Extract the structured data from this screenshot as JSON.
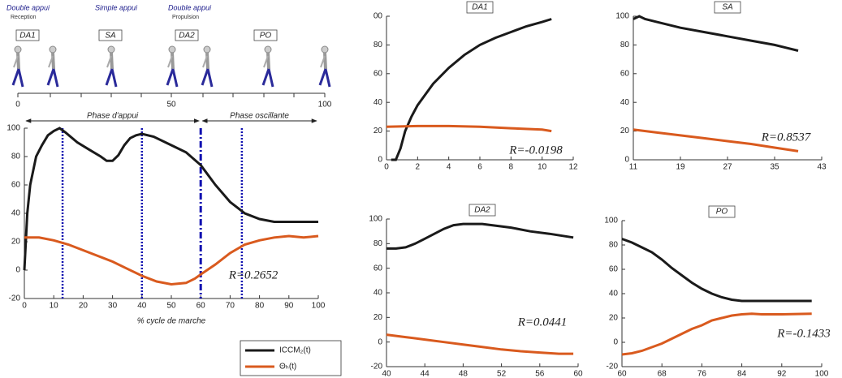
{
  "chart_data": [
    {
      "type": "timeline",
      "headers": [
        {
          "title": "Double appui",
          "subtitle": "Reception"
        },
        {
          "title": "Simple appui"
        },
        {
          "title": "Double appui",
          "subtitle": "Propulsion"
        }
      ],
      "phases": [
        "DA1",
        "SA",
        "DA2",
        "PO"
      ],
      "xlim": [
        0,
        100
      ],
      "xticks": [
        0,
        50,
        100
      ]
    },
    {
      "type": "line",
      "xlabel": "% cycle de marche",
      "annotation": "R=0.2652",
      "xlim": [
        0,
        100
      ],
      "xticks": [
        0,
        10,
        20,
        30,
        40,
        50,
        60,
        70,
        80,
        90,
        100
      ],
      "ylim": [
        -20,
        100
      ],
      "yticks": [
        -20,
        0,
        20,
        40,
        60,
        80,
        100
      ],
      "spans": [
        {
          "label": "Phase d'appui",
          "from": 0,
          "to": 60
        },
        {
          "label": "Phase oscillante",
          "from": 60,
          "to": 100
        }
      ],
      "vlines": [
        13,
        40,
        60,
        74
      ],
      "vline_styles": [
        "dot",
        "dot",
        "dashdot",
        "dot"
      ],
      "vline_color": "#1010b0",
      "series": [
        {
          "name": "ICCM₂(t)",
          "color": "#1a1a1a",
          "x": [
            0,
            1,
            2,
            4,
            6,
            8,
            10,
            12,
            14,
            18,
            22,
            26,
            28,
            30,
            32,
            34,
            36,
            38,
            40,
            44,
            50,
            55,
            60,
            65,
            70,
            75,
            80,
            85,
            90,
            95,
            100
          ],
          "values": [
            0,
            40,
            60,
            80,
            88,
            95,
            98,
            100,
            97,
            90,
            85,
            80,
            77,
            77,
            81,
            88,
            93,
            95,
            96,
            94,
            88,
            83,
            74,
            60,
            48,
            40,
            36,
            34,
            34,
            34,
            34
          ]
        },
        {
          "name": "Θₕ(t)",
          "color": "#d95a1e",
          "x": [
            0,
            5,
            10,
            15,
            20,
            25,
            30,
            35,
            40,
            45,
            50,
            55,
            58,
            60,
            65,
            70,
            75,
            80,
            85,
            90,
            95,
            100
          ],
          "values": [
            23,
            23,
            21,
            18,
            14,
            10,
            6,
            1,
            -4,
            -8,
            -10,
            -9,
            -6,
            -3,
            4,
            12,
            18,
            21,
            23,
            24,
            23,
            24
          ]
        }
      ]
    },
    {
      "type": "line",
      "title": "DA1",
      "annotation": "R=-0.0198",
      "xlim": [
        0,
        12
      ],
      "xticks": [
        0,
        2,
        4,
        6,
        8,
        10,
        12
      ],
      "ylim": [
        0,
        100
      ],
      "yticks": [
        0,
        20,
        40,
        60,
        80,
        {
          "value": 100,
          "label": "00"
        }
      ],
      "series": [
        {
          "color": "#1a1a1a",
          "x": [
            0.3,
            0.6,
            0.9,
            1.2,
            1.6,
            2,
            3,
            4,
            5,
            6,
            7,
            8,
            9,
            10,
            10.6
          ],
          "values": [
            0,
            0,
            8,
            20,
            30,
            38,
            53,
            64,
            73,
            80,
            85,
            89,
            93,
            96,
            98
          ]
        },
        {
          "color": "#d95a1e",
          "x": [
            0,
            2,
            4,
            6,
            8,
            10,
            10.6
          ],
          "values": [
            23,
            23.5,
            23.5,
            23,
            22,
            21,
            20
          ]
        }
      ]
    },
    {
      "type": "line",
      "title": "SA",
      "annotation": "R=0.8537",
      "xlim": [
        11,
        43
      ],
      "xticks": [
        11,
        19,
        27,
        35,
        43
      ],
      "ylim": [
        0,
        100
      ],
      "yticks": [
        0,
        20,
        40,
        60,
        80,
        100
      ],
      "series": [
        {
          "color": "#1a1a1a",
          "x": [
            11,
            12,
            13,
            15,
            19,
            23,
            27,
            31,
            35,
            37,
            39
          ],
          "values": [
            98,
            100,
            98,
            96,
            92,
            89,
            86,
            83,
            80,
            78,
            76
          ]
        },
        {
          "color": "#d95a1e",
          "x": [
            11,
            15,
            19,
            23,
            27,
            31,
            35,
            39
          ],
          "values": [
            21,
            19,
            17,
            15,
            13,
            11,
            8.5,
            6
          ]
        }
      ]
    },
    {
      "type": "line",
      "title": "DA2",
      "annotation": "R=0.0441",
      "xlim": [
        40,
        60
      ],
      "xticks": [
        40,
        44,
        48,
        52,
        56,
        60
      ],
      "ylim": [
        -20,
        100
      ],
      "yticks": [
        -20,
        0,
        20,
        40,
        60,
        80,
        100
      ],
      "series": [
        {
          "color": "#1a1a1a",
          "x": [
            40,
            41,
            42,
            43,
            44,
            45,
            46,
            47,
            48,
            49,
            50,
            51,
            53,
            55,
            57,
            59.5
          ],
          "values": [
            76,
            76,
            77,
            80,
            84,
            88,
            92,
            95,
            96,
            96,
            96,
            95,
            93,
            90,
            88,
            85
          ]
        },
        {
          "color": "#d95a1e",
          "x": [
            40,
            42,
            44,
            46,
            48,
            50,
            52,
            54,
            56,
            58,
            59.5
          ],
          "values": [
            6,
            4,
            2,
            0,
            -2,
            -4,
            -6,
            -7.5,
            -8.5,
            -9.5,
            -9.5
          ]
        }
      ]
    },
    {
      "type": "line",
      "title": "PO",
      "annotation": "R=-0.1433",
      "xlim": [
        60,
        100
      ],
      "xticks": [
        60,
        68,
        76,
        84,
        92,
        100
      ],
      "ylim": [
        -20,
        100
      ],
      "yticks": [
        -20,
        0,
        20,
        40,
        60,
        80,
        100
      ],
      "series": [
        {
          "color": "#1a1a1a",
          "x": [
            60,
            62,
            64,
            66,
            68,
            70,
            72,
            74,
            76,
            78,
            80,
            82,
            84,
            88,
            92,
            98
          ],
          "values": [
            85,
            82,
            78,
            74,
            68,
            61,
            55,
            49,
            44,
            40,
            37,
            35,
            34,
            34,
            34,
            34
          ]
        },
        {
          "color": "#d95a1e",
          "x": [
            60,
            62,
            64,
            66,
            68,
            70,
            72,
            74,
            76,
            78,
            80,
            82,
            84,
            86,
            88,
            92,
            98
          ],
          "values": [
            -10,
            -9,
            -7,
            -4,
            -1,
            3,
            7,
            11,
            14,
            18,
            20,
            22,
            23,
            23.5,
            23,
            23,
            23.5
          ]
        }
      ]
    }
  ]
}
